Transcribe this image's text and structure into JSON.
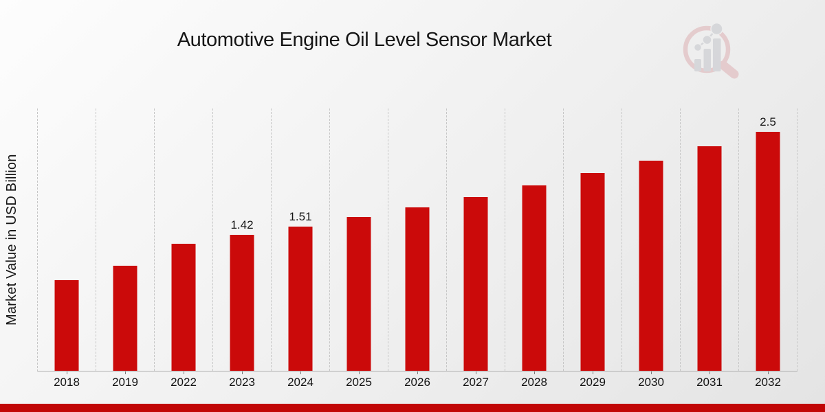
{
  "title": "Automotive Engine Oil Level Sensor Market",
  "y_axis_label": "Market Value in USD Billion",
  "chart_data": {
    "type": "bar",
    "title": "Automotive Engine Oil Level Sensor Market",
    "xlabel": "",
    "ylabel": "Market Value in USD Billion",
    "categories": [
      "2018",
      "2019",
      "2022",
      "2023",
      "2024",
      "2025",
      "2026",
      "2027",
      "2028",
      "2029",
      "2030",
      "2031",
      "2032"
    ],
    "values": [
      0.95,
      1.1,
      1.33,
      1.42,
      1.51,
      1.61,
      1.71,
      1.82,
      1.94,
      2.07,
      2.2,
      2.35,
      2.5
    ],
    "bar_labels": [
      "",
      "",
      "",
      "1.42",
      "1.51",
      "",
      "",
      "",
      "",
      "",
      "",
      "",
      "2.5"
    ],
    "ylim": [
      0,
      2.75
    ],
    "grid": "vertical dashed category separators only",
    "legend": "none",
    "bar_color": "#cb0a0a"
  },
  "colors": {
    "bar": "#cb0a0a",
    "bottom_strip": "#c10606",
    "background_start": "#fdfdfd",
    "background_end": "#e4e4e4",
    "gridline": "#c6c6c6",
    "axis_line": "#aeaeae",
    "text": "#161616"
  },
  "branding": {
    "logo": "magnifier-bar-chart-watermark"
  }
}
